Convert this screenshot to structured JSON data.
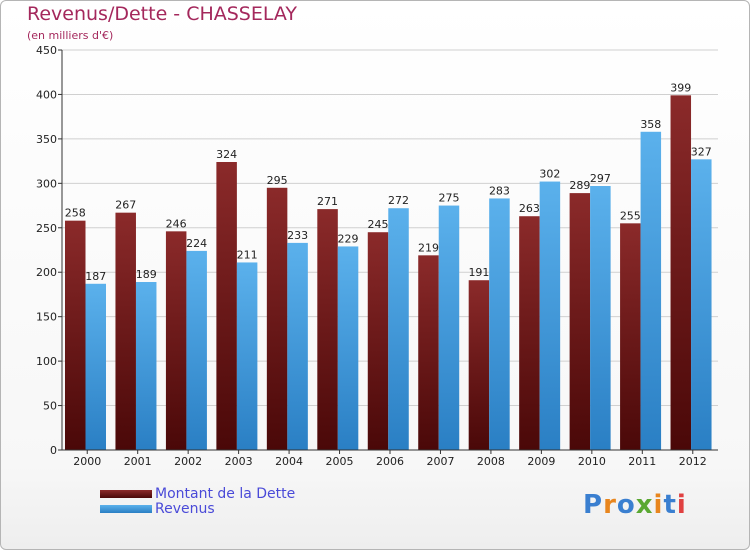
{
  "title": "Revenus/Dette - CHASSELAY",
  "subtitle": "(en milliers d'€)",
  "logo": "Proxiti",
  "colors": {
    "title": "#a4285c",
    "dette": "#7a1c1c",
    "revenus": "#4aa6e8",
    "grid": "#d0d0d0",
    "legend_text": "#4a4ad8"
  },
  "chart_data": {
    "type": "bar",
    "title": "Revenus/Dette - CHASSELAY",
    "subtitle": "(en milliers d'€)",
    "xlabel": "",
    "ylabel": "",
    "ylim": [
      0,
      450
    ],
    "yticks": [
      0,
      50,
      100,
      150,
      200,
      250,
      300,
      350,
      400,
      450
    ],
    "grid": true,
    "legend_position": "bottom-left",
    "categories": [
      "2000",
      "2001",
      "2002",
      "2003",
      "2004",
      "2005",
      "2006",
      "2007",
      "2008",
      "2009",
      "2010",
      "2011",
      "2012"
    ],
    "series": [
      {
        "name": "Montant de la Dette",
        "color": "#7a1c1c",
        "values": [
          258,
          267,
          246,
          324,
          295,
          271,
          245,
          219,
          191,
          263,
          289,
          255,
          399
        ]
      },
      {
        "name": "Revenus",
        "color": "#4aa6e8",
        "values": [
          187,
          189,
          224,
          211,
          233,
          229,
          272,
          275,
          283,
          302,
          297,
          358,
          327
        ]
      }
    ]
  }
}
